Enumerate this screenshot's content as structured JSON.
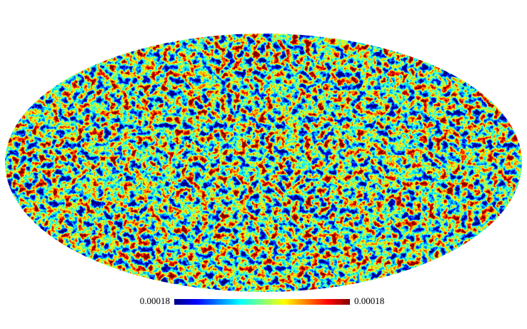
{
  "colorbar": {
    "min_label": "0.00018",
    "max_label": "0.00018"
  }
}
